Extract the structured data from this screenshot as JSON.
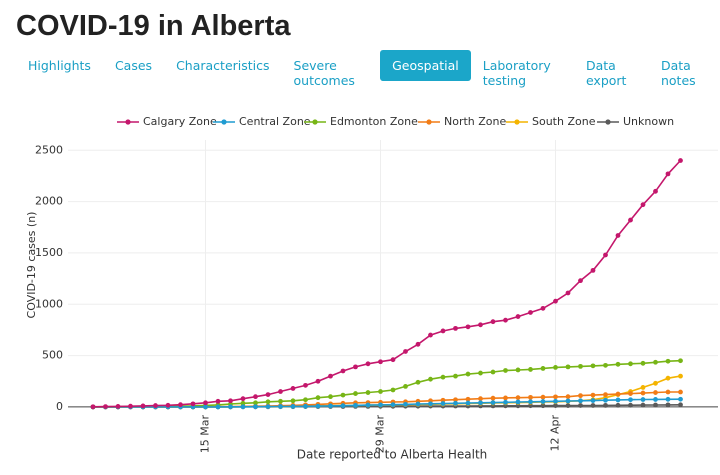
{
  "header": {
    "title": "COVID-19 in Alberta"
  },
  "tabs": [
    {
      "label": "Highlights"
    },
    {
      "label": "Cases"
    },
    {
      "label": "Characteristics"
    },
    {
      "label": "Severe outcomes"
    },
    {
      "label": "Geospatial",
      "active": true
    },
    {
      "label": "Laboratory testing"
    },
    {
      "label": "Data export"
    },
    {
      "label": "Data notes"
    }
  ],
  "chart_data": {
    "type": "line",
    "x_label": "Date reported to Alberta Health",
    "y_label": "COVID-19 cases (n)",
    "x": [
      "03-06",
      "03-07",
      "03-08",
      "03-09",
      "03-10",
      "03-11",
      "03-12",
      "03-13",
      "03-14",
      "03-15",
      "03-16",
      "03-17",
      "03-18",
      "03-19",
      "03-20",
      "03-21",
      "03-22",
      "03-23",
      "03-24",
      "03-25",
      "03-26",
      "03-27",
      "03-28",
      "03-29",
      "03-30",
      "03-31",
      "04-01",
      "04-02",
      "04-03",
      "04-04",
      "04-05",
      "04-06",
      "04-07",
      "04-08",
      "04-09",
      "04-10",
      "04-11",
      "04-12",
      "04-13",
      "04-14",
      "04-15",
      "04-16",
      "04-17",
      "04-18",
      "04-19",
      "04-20",
      "04-21",
      "04-22"
    ],
    "xlim": [
      "03-04",
      "04-25"
    ],
    "xticks": [
      {
        "value": "03-15",
        "label": "15 Mar"
      },
      {
        "value": "03-29",
        "label": "29 Mar"
      },
      {
        "value": "04-12",
        "label": "12 Apr"
      }
    ],
    "ylim": [
      -30,
      2600
    ],
    "yticks": [
      0,
      500,
      1000,
      1500,
      2000,
      2500
    ],
    "grid": true,
    "legend": "top",
    "series": [
      {
        "name": "Calgary Zone",
        "color": "#c4176c",
        "values": [
          1,
          3,
          5,
          7,
          10,
          13,
          16,
          22,
          30,
          40,
          55,
          60,
          80,
          100,
          120,
          150,
          180,
          210,
          250,
          300,
          350,
          390,
          420,
          440,
          460,
          540,
          610,
          700,
          740,
          765,
          780,
          800,
          830,
          845,
          880,
          920,
          960,
          1030,
          1110,
          1230,
          1330,
          1480,
          1670,
          1820,
          1970,
          2100,
          2270,
          2400
        ]
      },
      {
        "name": "Central Zone",
        "color": "#1f9bd1",
        "values": [
          0,
          0,
          0,
          0,
          0,
          0,
          0,
          0,
          0,
          0,
          0,
          1,
          1,
          2,
          3,
          4,
          5,
          6,
          8,
          10,
          12,
          15,
          18,
          20,
          22,
          25,
          28,
          30,
          33,
          35,
          38,
          40,
          42,
          45,
          48,
          50,
          52,
          55,
          58,
          60,
          62,
          65,
          68,
          70,
          72,
          73,
          74,
          75
        ]
      },
      {
        "name": "Edmonton Zone",
        "color": "#77b516",
        "values": [
          0,
          0,
          1,
          2,
          3,
          4,
          5,
          8,
          10,
          15,
          20,
          28,
          35,
          40,
          50,
          55,
          60,
          70,
          90,
          100,
          115,
          130,
          140,
          150,
          165,
          200,
          240,
          270,
          290,
          300,
          320,
          330,
          340,
          355,
          360,
          365,
          375,
          385,
          390,
          395,
          400,
          405,
          415,
          420,
          425,
          435,
          445,
          450
        ]
      },
      {
        "name": "North Zone",
        "color": "#f27c16",
        "values": [
          0,
          0,
          0,
          0,
          0,
          0,
          0,
          0,
          0,
          1,
          2,
          3,
          5,
          7,
          9,
          12,
          15,
          20,
          25,
          30,
          35,
          40,
          42,
          45,
          48,
          50,
          55,
          60,
          65,
          70,
          75,
          80,
          85,
          88,
          90,
          93,
          95,
          98,
          100,
          110,
          115,
          120,
          125,
          130,
          135,
          140,
          145,
          145
        ]
      },
      {
        "name": "South Zone",
        "color": "#f4b400",
        "values": [
          0,
          0,
          0,
          0,
          0,
          0,
          0,
          0,
          0,
          0,
          1,
          1,
          2,
          3,
          4,
          5,
          6,
          8,
          10,
          12,
          14,
          15,
          17,
          18,
          20,
          22,
          24,
          26,
          28,
          30,
          33,
          35,
          38,
          40,
          42,
          45,
          48,
          50,
          55,
          60,
          70,
          90,
          120,
          150,
          190,
          230,
          280,
          300
        ]
      },
      {
        "name": "Unknown",
        "color": "#5a5a5a",
        "values": [
          0,
          0,
          0,
          0,
          0,
          0,
          0,
          0,
          0,
          0,
          0,
          0,
          1,
          1,
          1,
          2,
          2,
          3,
          3,
          4,
          4,
          5,
          5,
          6,
          6,
          7,
          7,
          8,
          8,
          9,
          9,
          10,
          10,
          11,
          11,
          12,
          12,
          13,
          13,
          14,
          14,
          15,
          16,
          17,
          18,
          19,
          20,
          21
        ]
      }
    ]
  }
}
